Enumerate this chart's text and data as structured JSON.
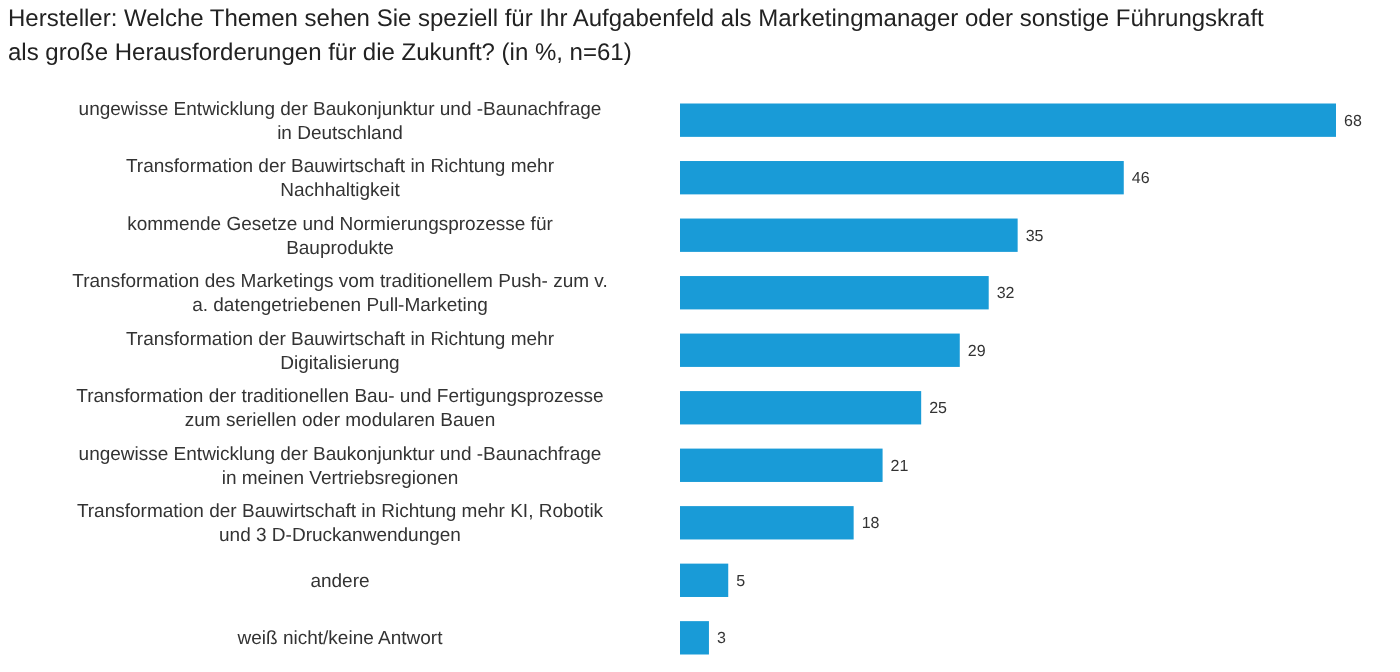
{
  "chart_data": {
    "type": "bar",
    "orientation": "horizontal",
    "title": "Hersteller: Welche Themen sehen Sie speziell für Ihr Aufgabenfeld als Marketingmanager oder sonstige Führungskraft als große Herausforderungen für die Zukunft? (in %, n=61)",
    "categories": [
      "ungewisse Entwicklung der Baukonjunktur und -Baunachfrage in Deutschland",
      "Transformation der Bauwirtschaft in Richtung mehr Nachhaltigkeit",
      "kommende Gesetze und Normierungsprozesse für Bauprodukte",
      "Transformation des Marketings vom traditionellem Push- zum v. a. datengetriebenen Pull-Marketing",
      "Transformation der Bauwirtschaft in Richtung mehr Digitalisierung",
      "Transformation der traditionellen Bau- und Fertigungsprozesse zum seriellen oder modularen Bauen",
      "ungewisse Entwicklung der Baukonjunktur und -Baunachfrage in meinen Vertriebsregionen",
      "Transformation der Bauwirtschaft in Richtung mehr KI, Robotik und 3 D-Druckanwendungen",
      "andere",
      "weiß nicht/keine Antwort"
    ],
    "values": [
      68,
      46,
      35,
      32,
      29,
      25,
      21,
      18,
      5,
      3
    ],
    "color": "#199bd7",
    "data_labels": true
  }
}
